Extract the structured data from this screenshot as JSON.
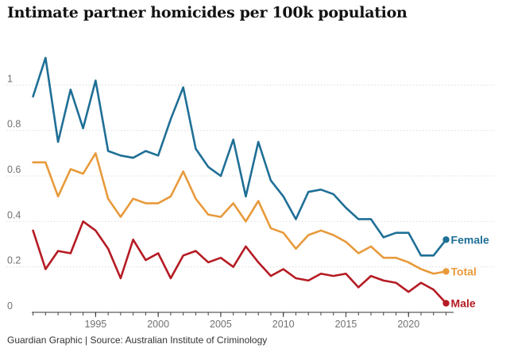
{
  "chart_data": {
    "type": "line",
    "title": "Intimate partner homicides per 100k population",
    "source": "Guardian Graphic | Source: Australian Institute of Criminology",
    "xlabel": "",
    "ylabel": "",
    "xlim": [
      1989.9,
      2023.6
    ],
    "ylim": [
      0,
      1.2
    ],
    "x_ticks": [
      1995,
      2000,
      2005,
      2010,
      2015,
      2020
    ],
    "y_ticks": [
      0,
      0.2,
      0.4,
      0.6,
      0.8,
      1
    ],
    "y_tick_labels": [
      "0",
      "0.2",
      "0.4",
      "0.6",
      "0.8",
      "1"
    ],
    "grid": true,
    "x": [
      1990,
      1991,
      1992,
      1993,
      1994,
      1995,
      1996,
      1997,
      1998,
      1999,
      2000,
      2001,
      2002,
      2003,
      2004,
      2005,
      2006,
      2007,
      2008,
      2009,
      2010,
      2011,
      2012,
      2013,
      2014,
      2015,
      2016,
      2017,
      2018,
      2019,
      2020,
      2021,
      2022,
      2023
    ],
    "series": [
      {
        "name": "Female",
        "color": "#1f6f96",
        "values": [
          0.95,
          1.12,
          0.75,
          0.98,
          0.81,
          1.02,
          0.71,
          0.69,
          0.68,
          0.71,
          0.69,
          0.85,
          0.99,
          0.72,
          0.64,
          0.6,
          0.76,
          0.51,
          0.75,
          0.58,
          0.51,
          0.41,
          0.53,
          0.54,
          0.52,
          0.46,
          0.41,
          0.41,
          0.33,
          0.35,
          0.35,
          0.25,
          0.25,
          0.32
        ]
      },
      {
        "name": "Total",
        "color": "#e89a3b",
        "values": [
          0.66,
          0.66,
          0.51,
          0.63,
          0.61,
          0.7,
          0.5,
          0.42,
          0.5,
          0.48,
          0.48,
          0.51,
          0.62,
          0.5,
          0.43,
          0.42,
          0.48,
          0.4,
          0.49,
          0.37,
          0.35,
          0.28,
          0.34,
          0.36,
          0.34,
          0.31,
          0.26,
          0.29,
          0.24,
          0.24,
          0.22,
          0.19,
          0.17,
          0.18
        ]
      },
      {
        "name": "Male",
        "color": "#b51b23",
        "values": [
          0.36,
          0.19,
          0.27,
          0.26,
          0.4,
          0.36,
          0.28,
          0.15,
          0.32,
          0.23,
          0.26,
          0.15,
          0.25,
          0.27,
          0.22,
          0.24,
          0.2,
          0.29,
          0.22,
          0.16,
          0.19,
          0.15,
          0.14,
          0.17,
          0.16,
          0.17,
          0.11,
          0.16,
          0.14,
          0.13,
          0.09,
          0.13,
          0.1,
          0.04
        ]
      }
    ]
  }
}
